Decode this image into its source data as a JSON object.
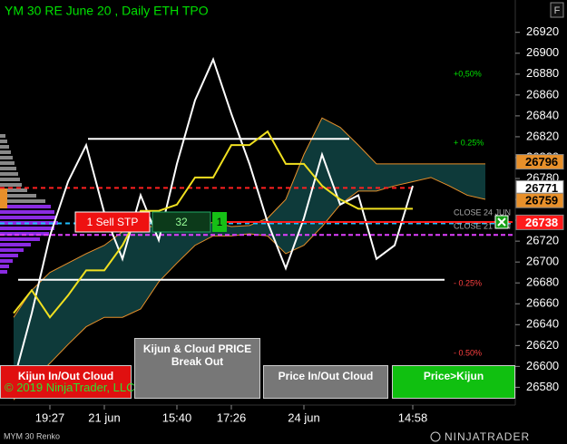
{
  "chart_data": {
    "type": "line",
    "title": "YM 30 RE June 20 , Daily ETH TPO",
    "categories": [
      null,
      null,
      "19:27",
      null,
      null,
      "21 jun",
      null,
      null,
      null,
      "15:40",
      null,
      null,
      "17:26",
      null,
      null,
      null,
      "24 jun",
      null,
      null,
      null,
      null,
      null,
      "14:58",
      null,
      null,
      null,
      null,
      null
    ],
    "series": [
      {
        "color": "#ffffff",
        "values": [
          26586,
          26651,
          26725,
          26777,
          26812,
          26747,
          26703,
          26764,
          26721,
          26794,
          26855,
          26894,
          26842,
          26794,
          26738,
          26694,
          26742,
          26803,
          26755,
          26764,
          26703,
          26716,
          26773,
          null,
          null,
          null,
          null,
          null
        ]
      },
      {
        "color": "#f0e020",
        "values": [
          26651,
          26673,
          26647,
          26668,
          26692,
          26692,
          26716,
          26749,
          26749,
          26755,
          26781,
          26781,
          26812,
          26812,
          26825,
          26794,
          26794,
          26773,
          26760,
          26751,
          26751,
          26751,
          26751,
          null,
          null,
          null,
          null,
          null
        ]
      }
    ],
    "cloud": {
      "color": "#e8902a",
      "fill": "#0e3a3a",
      "upper": [
        26647,
        26673,
        26690,
        26699,
        26708,
        26716,
        26729,
        26734,
        26734,
        26729,
        26734,
        26738,
        26734,
        26735,
        26742,
        26760,
        26803,
        26838,
        26829,
        26812,
        26794,
        26794,
        26794,
        26794,
        26794,
        26794,
        26794,
        null
      ],
      "lower": [
        26568,
        26586,
        26603,
        26621,
        26638,
        26647,
        26647,
        26655,
        26681,
        26699,
        26716,
        26725,
        26725,
        26727,
        26725,
        26708,
        26716,
        26734,
        26755,
        26768,
        26768,
        26773,
        26777,
        26781,
        26773,
        26764,
        26760,
        null
      ]
    },
    "levels": [
      {
        "value": 26818,
        "color": "#ffffff"
      },
      {
        "value": 26683,
        "color": "#ffffff"
      },
      {
        "value": 26771,
        "color": "#ff2020"
      },
      {
        "value": 26737,
        "color": "#20c0ff"
      },
      {
        "value": 26726,
        "color": "#e040ff"
      }
    ],
    "price_markers": [
      {
        "value": 26796,
        "color": "#e8902a"
      },
      {
        "value": 26771,
        "color": "#ffffff"
      },
      {
        "value": 26759,
        "color": "#e8902a"
      },
      {
        "value": 26738,
        "color": "#ff1a1a"
      }
    ],
    "ylim": [
      26563,
      26951
    ],
    "yticks": [
      26580,
      26600,
      26620,
      26640,
      26660,
      26680,
      26700,
      26720,
      26740,
      26760,
      26780,
      26800,
      26820,
      26840,
      26860,
      26880,
      26900,
      26920
    ],
    "annotations": [
      "+0,50%",
      "+ 0.25%",
      "- 0.25%",
      "- 0.50%"
    ],
    "close_labels": [
      "CLOSE 24 JUN",
      "CLOSE 21 JUN"
    ],
    "order": {
      "label": "1 Sell STP",
      "quantity": 32,
      "filled": 1
    },
    "buttons": [
      "Kijun In/Out Cloud",
      "Kijun & Cloud PRICE Break Out",
      "Price In/Out Cloud",
      "Price>Kijun"
    ],
    "copyright": "© 2019 NinjaTrader, LLC",
    "instrument": "MYM 30 Renko",
    "logo": "NINJATRADER",
    "corner_button": "F"
  }
}
